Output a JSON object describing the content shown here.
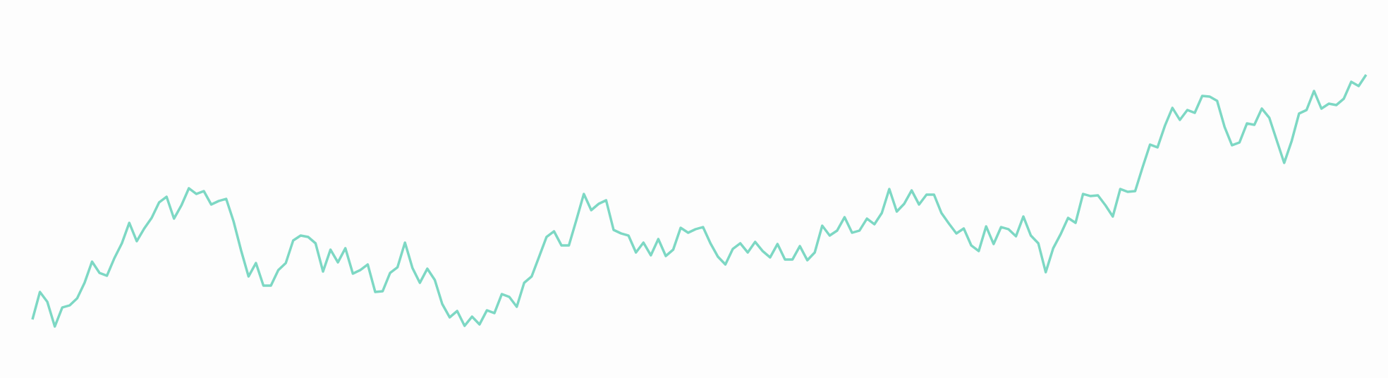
{
  "chart_data": {
    "type": "line",
    "color": "#7dd8c4",
    "ylim": [
      0,
      536
    ],
    "values": [
      83,
      122,
      108,
      73,
      100,
      103,
      113,
      135,
      165,
      149,
      145,
      170,
      191,
      220,
      194,
      212,
      227,
      249,
      257,
      226,
      245,
      269,
      261,
      265,
      246,
      251,
      254,
      222,
      181,
      144,
      163,
      131,
      131,
      153,
      163,
      195,
      202,
      200,
      191,
      151,
      182,
      164,
      184,
      148,
      153,
      161,
      122,
      123,
      149,
      157,
      192,
      156,
      135,
      155,
      139,
      105,
      86,
      95,
      74,
      87,
      76,
      96,
      92,
      119,
      115,
      101,
      135,
      144,
      172,
      200,
      208,
      188,
      188,
      224,
      261,
      238,
      247,
      252,
      210,
      205,
      202,
      178,
      192,
      174,
      197,
      173,
      182,
      213,
      206,
      211,
      214,
      191,
      172,
      161,
      183,
      191,
      178,
      193,
      180,
      171,
      190,
      168,
      168,
      187,
      167,
      178,
      216,
      202,
      209,
      228,
      206,
      209,
      226,
      218,
      234,
      268,
      236,
      247,
      266,
      246,
      260,
      260,
      234,
      219,
      205,
      212,
      188,
      180,
      215,
      190,
      214,
      211,
      201,
      229,
      202,
      191,
      150,
      184,
      204,
      227,
      220,
      261,
      258,
      259,
      245,
      229,
      268,
      264,
      265,
      299,
      331,
      327,
      358,
      383,
      366,
      380,
      376,
      400,
      399,
      393,
      356,
      330,
      334,
      361,
      359,
      382,
      369,
      337,
      305,
      336,
      375,
      380,
      407,
      382,
      389,
      387,
      396,
      420,
      414,
      430
    ]
  }
}
